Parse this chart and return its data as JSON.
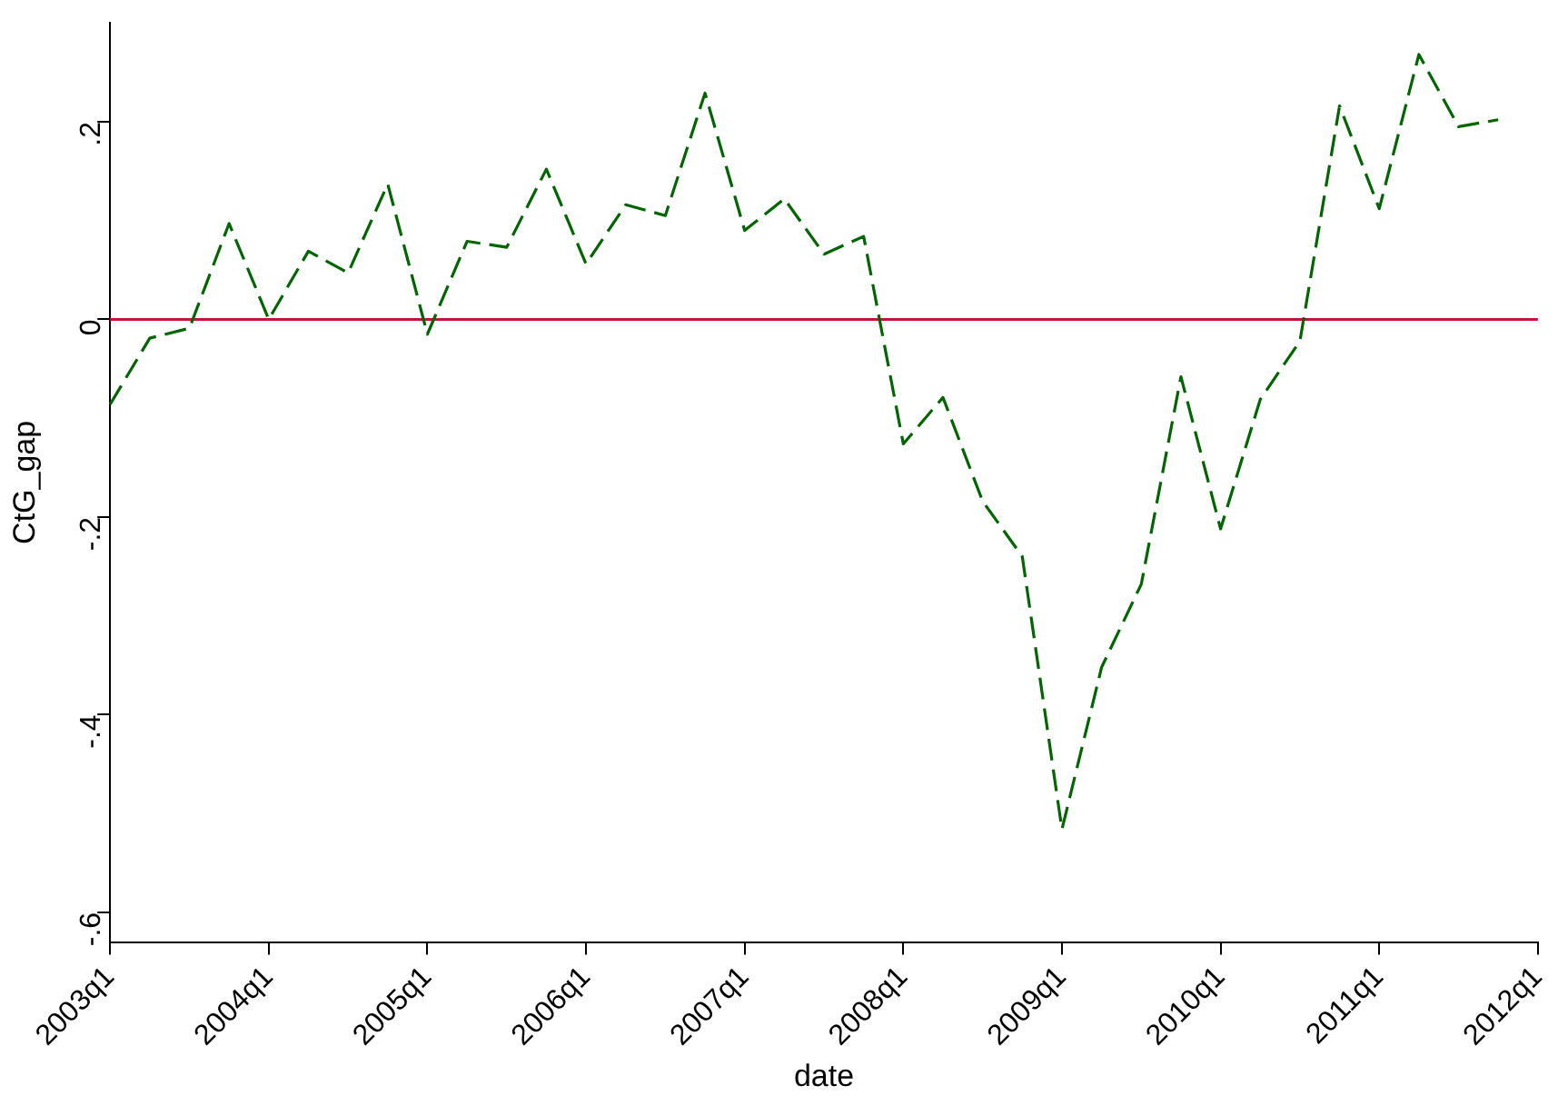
{
  "chart_data": {
    "type": "line",
    "xlabel": "date",
    "ylabel": "CtG_gap",
    "categories": [
      "2003q1",
      null,
      null,
      null,
      "2004q1",
      null,
      null,
      null,
      "2005q1",
      null,
      null,
      null,
      "2006q1",
      null,
      null,
      null,
      "2007q1",
      null,
      null,
      null,
      "2008q1",
      null,
      null,
      null,
      "2009q1",
      null,
      null,
      null,
      "2010q1",
      null,
      null,
      null,
      "2011q1",
      null,
      null,
      null,
      "2012q1"
    ],
    "series": [
      {
        "color": "#006400",
        "line_style": "dashed",
        "values": [
          -0.086,
          -0.019,
          -0.009,
          0.097,
          0.0,
          0.069,
          0.047,
          0.137,
          -0.015,
          0.079,
          0.073,
          0.152,
          0.056,
          0.116,
          0.105,
          0.229,
          0.09,
          0.122,
          0.066,
          0.084,
          -0.126,
          -0.079,
          -0.184,
          -0.24,
          -0.516,
          -0.352,
          -0.268,
          -0.058,
          -0.212,
          -0.081,
          -0.022,
          0.216,
          0.112,
          0.268,
          0.195,
          0.202,
          null
        ]
      }
    ],
    "ylim": [
      -0.63,
      0.3
    ],
    "yticks": [
      {
        "value": -0.6,
        "label": "-.6"
      },
      {
        "value": -0.4,
        "label": "-.4"
      },
      {
        "value": -0.2,
        "label": "-.2"
      },
      0,
      {
        "value": 0.2,
        "label": ".2"
      }
    ],
    "ref_lines": [
      {
        "axis": "y",
        "value": 0,
        "color": "#c8103c"
      }
    ],
    "grid": false,
    "legend": false,
    "marker": "none"
  }
}
